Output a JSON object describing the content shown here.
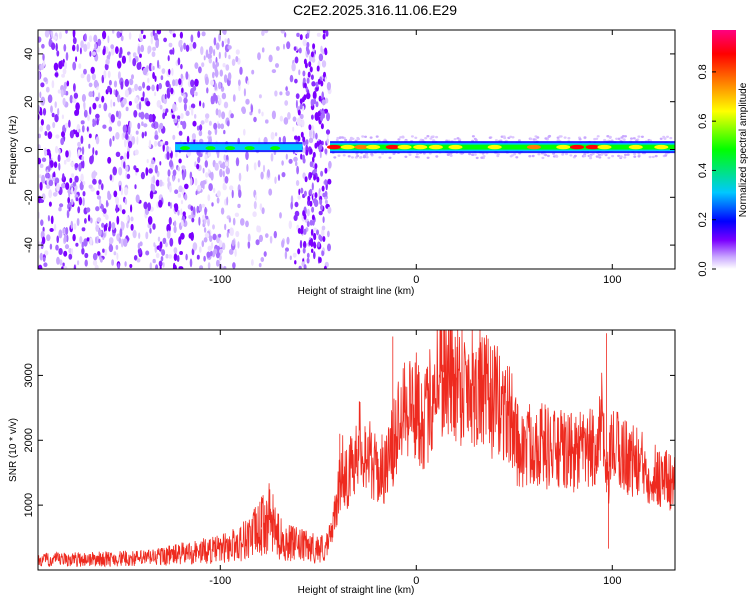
{
  "title": "C2E2.2025.316.11.06.E29",
  "chart_data": [
    {
      "type": "heatmap",
      "xlabel": "Height of straight line (km)",
      "ylabel": "Frequency (Hz)",
      "xlim": [
        -193,
        132
      ],
      "ylim": [
        -50,
        50
      ],
      "xticks": [
        -100,
        0,
        100
      ],
      "yticks": [
        -40,
        -20,
        0,
        20,
        40
      ],
      "colorbar": {
        "label": "Normalized spectral amplitude",
        "ticks": [
          0.0,
          0.2,
          0.4,
          0.6,
          0.8
        ],
        "range": [
          0,
          0.97
        ],
        "colors": [
          "#ffffff",
          "#c9a8ff",
          "#7b00ff",
          "#0000ff",
          "#00c8ff",
          "#00ff00",
          "#ffff00",
          "#ff8000",
          "#ff0000",
          "#ff0080"
        ]
      },
      "features": {
        "broadband_noise_region_km": [
          -193,
          -44
        ],
        "narrowband_line_start_km": -123,
        "narrowband_line_freq_hz": 1
      }
    },
    {
      "type": "line",
      "xlabel": "Height of straight line (km)",
      "ylabel": "SNR (10 * v/v)",
      "xlim": [
        -193,
        132
      ],
      "ylim": [
        0,
        3700
      ],
      "xticks": [
        -100,
        0,
        100
      ],
      "yticks": [
        1000,
        2000,
        3000
      ],
      "color": "#ff0000",
      "series": [
        {
          "x": [
            -193,
            -180,
            -160,
            -140,
            -120,
            -100,
            -90,
            -80,
            -75,
            -70,
            -65,
            -60,
            -50,
            -45,
            -40,
            -38,
            -35,
            -32,
            -30,
            -25,
            -20,
            -15,
            -10,
            -8,
            -5,
            0,
            5,
            10,
            13,
            15,
            20,
            25,
            30,
            35,
            40,
            45,
            50,
            52,
            55,
            60,
            70,
            80,
            90,
            95,
            97,
            100,
            105,
            110,
            120,
            132
          ],
          "y": [
            150,
            160,
            170,
            180,
            250,
            320,
            420,
            620,
            800,
            500,
            420,
            380,
            330,
            350,
            1100,
            1600,
            1400,
            1700,
            2000,
            1800,
            1500,
            1600,
            2100,
            2700,
            2600,
            2500,
            2300,
            3000,
            3100,
            3000,
            2950,
            2900,
            2850,
            2700,
            2600,
            2500,
            2200,
            1900,
            1850,
            2000,
            1850,
            1800,
            1850,
            2300,
            1200,
            1900,
            1800,
            1700,
            1500,
            1350
          ]
        }
      ]
    }
  ]
}
